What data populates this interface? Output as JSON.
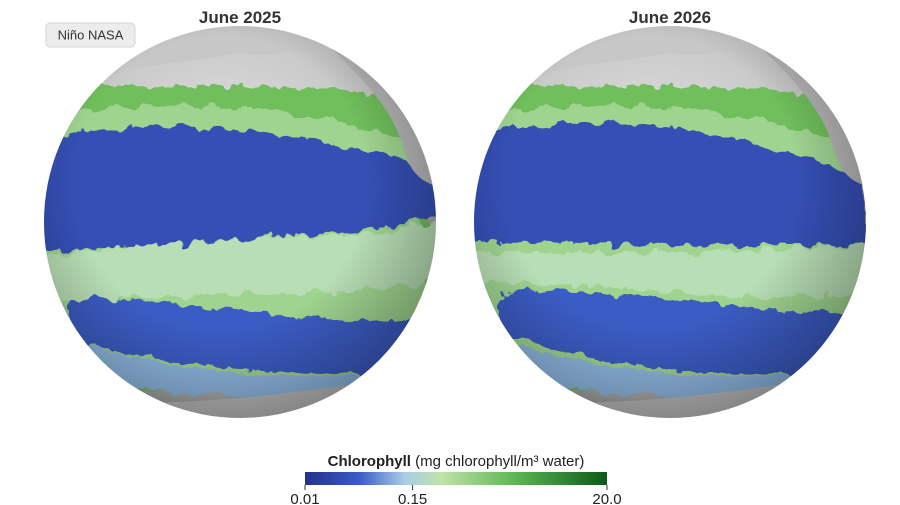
{
  "header_button": "Niño NASA",
  "maps": [
    {
      "title": "June 2025"
    },
    {
      "title": "June 2026"
    }
  ],
  "legend": {
    "title": "Chlorophyll",
    "units": "(mg chlorophyll/m³ water)",
    "scale": "log",
    "range": [
      0.01,
      20
    ],
    "ticks": [
      0.01,
      0.15,
      {
        "value": 20,
        "label": "20.0"
      }
    ]
  }
}
